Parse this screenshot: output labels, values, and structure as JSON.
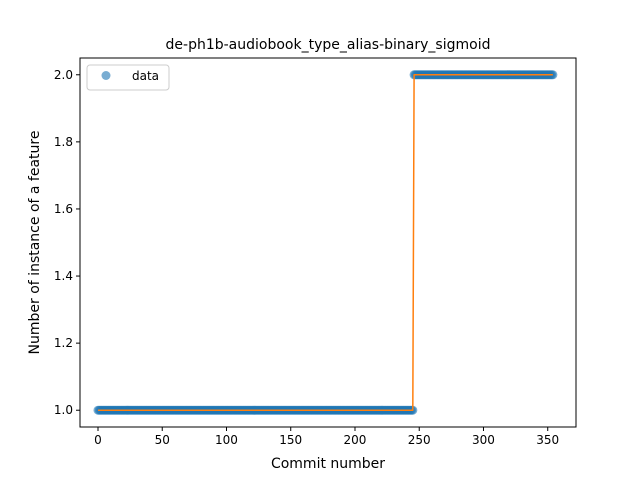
{
  "chart_data": {
    "type": "line",
    "title": "de-ph1b-audiobook_type_alias-binary_sigmoid",
    "xlabel": "Commit number",
    "ylabel": "Number of instance of a feature",
    "xlim": [
      -14,
      372
    ],
    "ylim": [
      0.95,
      2.05
    ],
    "xticks": [
      0,
      50,
      100,
      150,
      200,
      250,
      300,
      350
    ],
    "yticks": [
      1.0,
      1.2,
      1.4,
      1.6,
      1.8,
      2.0
    ],
    "xtick_labels": [
      "0",
      "50",
      "100",
      "150",
      "200",
      "250",
      "300",
      "350"
    ],
    "ytick_labels": [
      "1.0",
      "1.2",
      "1.4",
      "1.6",
      "1.8",
      "2.0"
    ],
    "grid": false,
    "legend": {
      "position": "top-left",
      "entries": [
        "data"
      ]
    },
    "series": [
      {
        "name": "data",
        "style": "markers",
        "color": "#1f77b4",
        "alpha": 0.6,
        "segments": [
          {
            "x_start": 0,
            "x_end": 245,
            "y": 1.0
          },
          {
            "x_start": 246,
            "x_end": 354,
            "y": 2.0
          }
        ]
      },
      {
        "style": "line",
        "color": "#ff7f0e",
        "points": [
          [
            0,
            1.0
          ],
          [
            245,
            1.0
          ],
          [
            246,
            2.0
          ],
          [
            354,
            2.0
          ]
        ]
      }
    ]
  }
}
